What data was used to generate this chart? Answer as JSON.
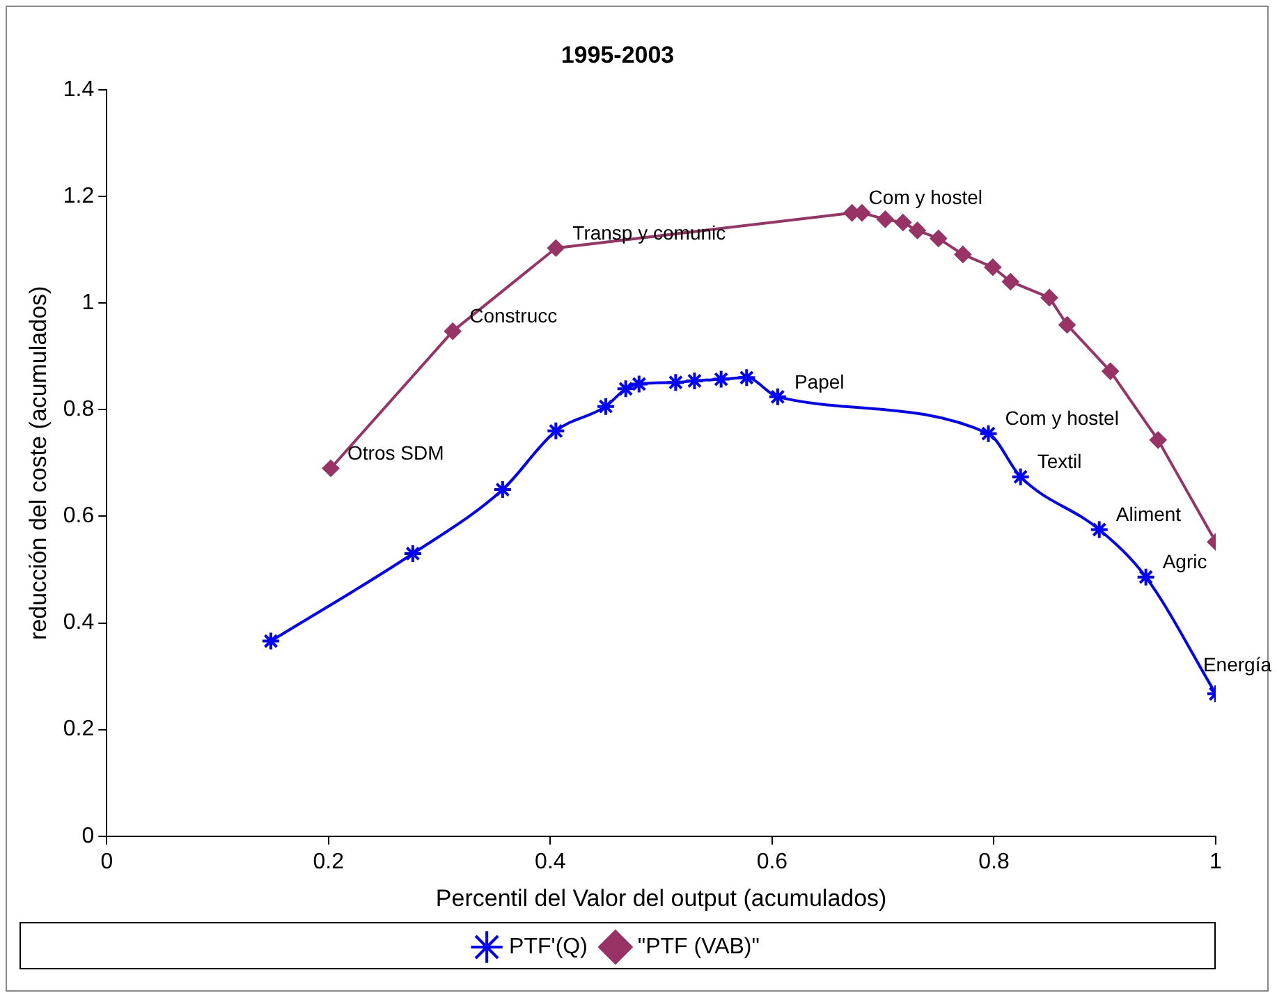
{
  "chart_data": {
    "type": "line",
    "title": "1995-2003",
    "xlabel": "Percentil del Valor del output (acumulados)",
    "ylabel": "reducción del coste (acumulados)",
    "xlim": [
      0,
      1
    ],
    "xticks": [
      0,
      0.2,
      0.4,
      0.6,
      0.8,
      1
    ],
    "ylim": [
      0,
      1.4
    ],
    "yticks": [
      0,
      0.2,
      0.4,
      0.6,
      0.8,
      1,
      1.2,
      1.4
    ],
    "grid": false,
    "legend": "bottom",
    "series": [
      {
        "name": "PTF'(Q)",
        "color": "#0000ff",
        "marker": "cross",
        "x": [
          0.148,
          0.276,
          0.357,
          0.405,
          0.45,
          0.468,
          0.48,
          0.513,
          0.53,
          0.554,
          0.577,
          0.605,
          0.795,
          0.824,
          0.895,
          0.937,
          1.0
        ],
        "values": [
          0.366,
          0.53,
          0.65,
          0.76,
          0.806,
          0.839,
          0.848,
          0.851,
          0.854,
          0.857,
          0.86,
          0.824,
          0.755,
          0.674,
          0.575,
          0.486,
          0.267
        ]
      },
      {
        "name": "\"PTF (VAB)\"",
        "color": "#993366",
        "marker": "diamond",
        "x": [
          0.202,
          0.312,
          0.405,
          0.672,
          0.681,
          0.702,
          0.718,
          0.731,
          0.75,
          0.772,
          0.799,
          0.815,
          0.85,
          0.866,
          0.905,
          0.948,
          1.0
        ],
        "values": [
          0.69,
          0.947,
          1.103,
          1.169,
          1.169,
          1.157,
          1.151,
          1.136,
          1.121,
          1.091,
          1.067,
          1.04,
          1.01,
          0.959,
          0.872,
          0.743,
          0.552
        ]
      }
    ],
    "annotations": [
      {
        "text": "Otros SDM",
        "x": 0.202,
        "y": 0.69
      },
      {
        "text": "Construcc",
        "x": 0.312,
        "y": 0.947
      },
      {
        "text": "Transp y comunic",
        "x": 0.405,
        "y": 1.103
      },
      {
        "text": "Com y hostel",
        "x": 0.672,
        "y": 1.169
      },
      {
        "text": "Papel",
        "x": 0.605,
        "y": 0.824
      },
      {
        "text": "Com y hostel",
        "x": 0.795,
        "y": 0.755
      },
      {
        "text": "Textil",
        "x": 0.824,
        "y": 0.674
      },
      {
        "text": "Aliment",
        "x": 0.895,
        "y": 0.575
      },
      {
        "text": "Agric",
        "x": 0.937,
        "y": 0.486
      },
      {
        "text": "Energía",
        "x": 1.0,
        "y": 0.267
      }
    ]
  }
}
